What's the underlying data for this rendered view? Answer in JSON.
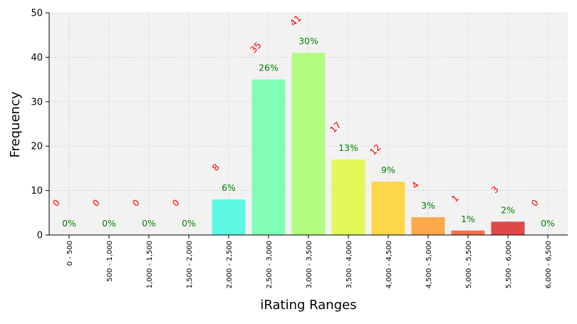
{
  "chart_data": {
    "type": "bar",
    "title": "",
    "xlabel": "iRating Ranges",
    "ylabel": "Frequency",
    "ylim": [
      0,
      50
    ],
    "yticks": [
      0,
      10,
      20,
      30,
      40,
      50
    ],
    "grid": true,
    "categories": [
      "0 - 500",
      "500 - 1,000",
      "1,000 - 1,500",
      "1,500 - 2,000",
      "2,000 - 2,500",
      "2,500 - 3,000",
      "3,000 - 3,500",
      "3,500 - 4,000",
      "4,000 - 4,500",
      "4,500 - 5,000",
      "5,000 - 5,500",
      "5,500 - 6,000",
      "6,000 - 6,500"
    ],
    "values": [
      0,
      0,
      0,
      0,
      8,
      35,
      41,
      17,
      12,
      4,
      1,
      3,
      0
    ],
    "percent_labels": [
      "0%",
      "0%",
      "0%",
      "0%",
      "6%",
      "26%",
      "30%",
      "13%",
      "9%",
      "3%",
      "1%",
      "2%",
      "0%"
    ],
    "bar_colors": [
      "#3ec8ff",
      "#3edcff",
      "#3ef0f0",
      "#45f5e8",
      "#5cf8e4",
      "#82fdb8",
      "#b2fc80",
      "#e2f85a",
      "#fdd64a",
      "#fda84a",
      "#f9704a",
      "#e04848",
      "#c83838"
    ],
    "count_label_color": "#ff0000",
    "percent_label_color": "#008000",
    "plot_background": "#f2f2f2"
  }
}
